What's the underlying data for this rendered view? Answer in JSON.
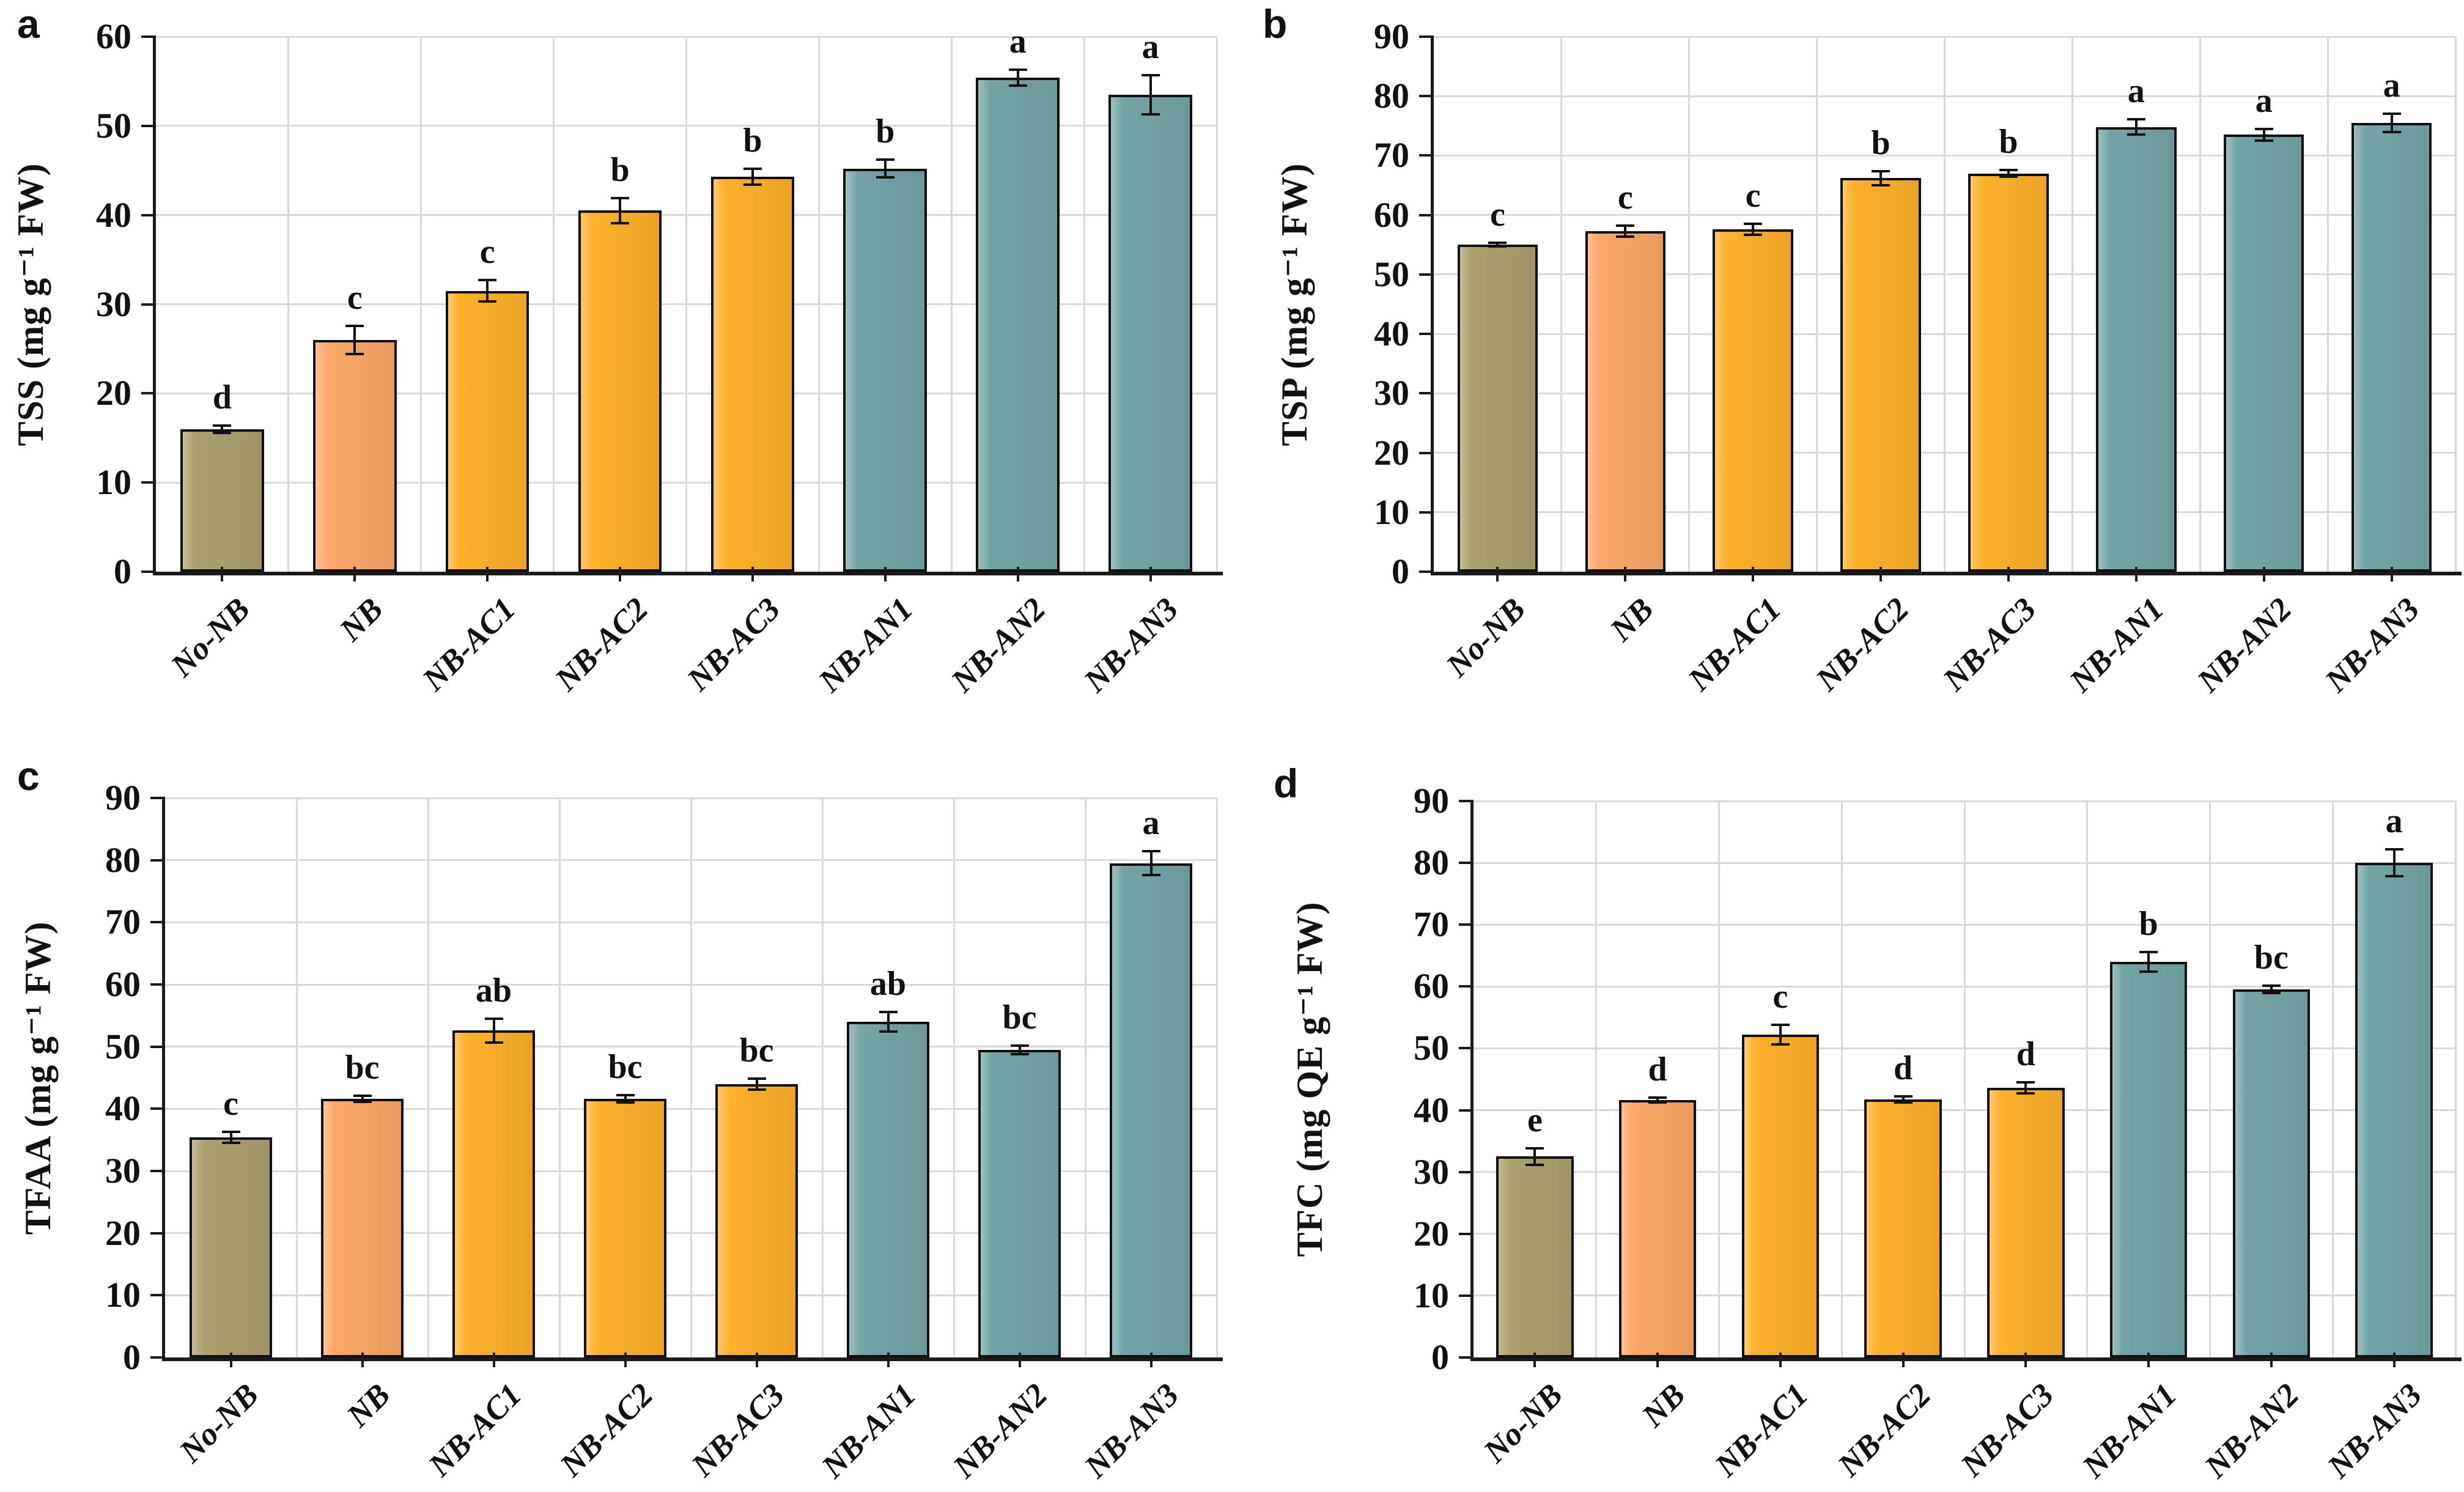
{
  "colors": {
    "olive": "#ABA06F",
    "salmon": "#FBA767",
    "amber": "#FDB02B",
    "teal": "#74A4A6",
    "grid": "#D9D9D9",
    "axis": "#1A1A1A",
    "bar_border": "#111111",
    "error_bar": "#111111",
    "text": "#111111",
    "background": "#FFFFFF"
  },
  "categories": [
    "No-NB",
    "NB",
    "NB-AC1",
    "NB-AC2",
    "NB-AC3",
    "NB-AN1",
    "NB-AN2",
    "NB-AN3"
  ],
  "bar_color_names": [
    "olive",
    "salmon",
    "amber",
    "amber",
    "amber",
    "teal",
    "teal",
    "teal"
  ],
  "chart_data": [
    {
      "type": "bar",
      "panel_letter": "a",
      "ylabel": "TSS (mg g⁻¹ FW)",
      "categories": [
        "No-NB",
        "NB",
        "NB-AC1",
        "NB-AC2",
        "NB-AC3",
        "NB-AN1",
        "NB-AN2",
        "NB-AN3"
      ],
      "values": [
        16.0,
        26.0,
        31.5,
        40.5,
        44.3,
        45.2,
        55.4,
        53.5
      ],
      "errors": [
        0.4,
        1.6,
        1.2,
        1.4,
        0.9,
        1.0,
        0.9,
        2.2
      ],
      "sig_letters": [
        "d",
        "c",
        "c",
        "b",
        "b",
        "b",
        "a",
        "a"
      ],
      "ylim": [
        0,
        60
      ],
      "ytick_step": 10,
      "yticks": [
        0,
        10,
        20,
        30,
        40,
        50,
        60
      ],
      "grid": true,
      "legend": false
    },
    {
      "type": "bar",
      "panel_letter": "b",
      "ylabel": "TSP (mg g⁻¹ FW)",
      "categories": [
        "No-NB",
        "NB",
        "NB-AC1",
        "NB-AC2",
        "NB-AC3",
        "NB-AN1",
        "NB-AN2",
        "NB-AN3"
      ],
      "values": [
        55.0,
        57.3,
        57.6,
        66.2,
        67.0,
        74.8,
        73.5,
        75.5
      ],
      "errors": [
        0.3,
        0.9,
        0.9,
        1.2,
        0.6,
        1.3,
        1.0,
        1.5
      ],
      "sig_letters": [
        "c",
        "c",
        "c",
        "b",
        "b",
        "a",
        "a",
        "a"
      ],
      "ylim": [
        0,
        90
      ],
      "ytick_step": 10,
      "yticks": [
        0,
        10,
        20,
        30,
        40,
        50,
        60,
        70,
        80,
        90
      ],
      "grid": true,
      "legend": false
    },
    {
      "type": "bar",
      "panel_letter": "c",
      "ylabel": "TFAA (mg g⁻¹ FW)",
      "categories": [
        "No-NB",
        "NB",
        "NB-AC1",
        "NB-AC2",
        "NB-AC3",
        "NB-AN1",
        "NB-AN2",
        "NB-AN3"
      ],
      "values": [
        35.4,
        41.6,
        52.6,
        41.6,
        44.0,
        54.0,
        49.5,
        79.5
      ],
      "errors": [
        0.9,
        0.5,
        1.9,
        0.6,
        0.9,
        1.6,
        0.7,
        1.9
      ],
      "sig_letters": [
        "c",
        "bc",
        "ab",
        "bc",
        "bc",
        "ab",
        "bc",
        "a"
      ],
      "ylim": [
        0,
        90
      ],
      "ytick_step": 10,
      "yticks": [
        0,
        10,
        20,
        30,
        40,
        50,
        60,
        70,
        80,
        90
      ],
      "grid": true,
      "legend": false
    },
    {
      "type": "bar",
      "panel_letter": "d",
      "ylabel": "TFC (mg QE g⁻¹ FW)",
      "categories": [
        "No-NB",
        "NB",
        "NB-AC1",
        "NB-AC2",
        "NB-AC3",
        "NB-AN1",
        "NB-AN2",
        "NB-AN3"
      ],
      "values": [
        32.5,
        41.6,
        52.2,
        41.7,
        43.6,
        64.0,
        59.5,
        80.0
      ],
      "errors": [
        1.3,
        0.4,
        1.6,
        0.5,
        0.9,
        1.6,
        0.6,
        2.2
      ],
      "sig_letters": [
        "e",
        "d",
        "c",
        "d",
        "d",
        "b",
        "bc",
        "a"
      ],
      "ylim": [
        0,
        90
      ],
      "ytick_step": 10,
      "yticks": [
        0,
        10,
        20,
        30,
        40,
        50,
        60,
        70,
        80,
        90
      ],
      "grid": true,
      "legend": false
    }
  ]
}
